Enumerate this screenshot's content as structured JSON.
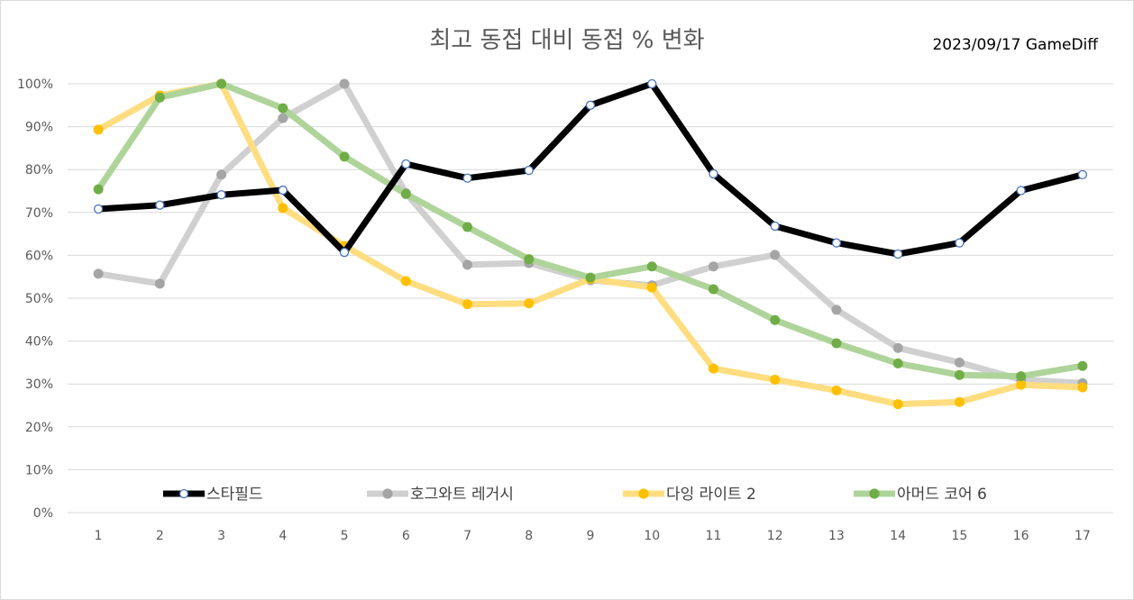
{
  "chart_data": {
    "type": "line",
    "title": "최고 동접 대비 동접 % 변화",
    "credit": "2023/09/17 GameDiff",
    "xlabel": "",
    "ylabel": "",
    "x": [
      1,
      2,
      3,
      4,
      5,
      6,
      7,
      8,
      9,
      10,
      11,
      12,
      13,
      14,
      15,
      16,
      17
    ],
    "ylim": [
      0,
      100
    ],
    "yticks": [
      "0%",
      "10%",
      "20%",
      "30%",
      "40%",
      "50%",
      "60%",
      "70%",
      "80%",
      "90%",
      "100%"
    ],
    "grid": true,
    "legend_position": "bottom-inside",
    "series": [
      {
        "name": "호그와트 레거시",
        "color": "#a5a5a5",
        "line_color": "#d0d0d0",
        "values": [
          55.7,
          53.4,
          78.8,
          92,
          100,
          74.5,
          57.8,
          58.2,
          54.2,
          53,
          57.4,
          60.1,
          47.3,
          38.4,
          35,
          31,
          30.2
        ]
      },
      {
        "name": "다잉 라이트 2",
        "color": "#ffc000",
        "line_color": "#ffdd80",
        "values": [
          89.3,
          97.3,
          100,
          71,
          62.2,
          54,
          48.6,
          48.8,
          54.5,
          52.5,
          33.6,
          31,
          28.5,
          25.3,
          25.8,
          29.8,
          29.2
        ]
      },
      {
        "name": "아머드 코어 6",
        "color": "#70ad47",
        "line_color": "#aed49a",
        "values": [
          75.4,
          96.8,
          100,
          94.3,
          83,
          74.3,
          66.6,
          59.1,
          54.8,
          57.4,
          52.1,
          44.9,
          39.5,
          34.8,
          32.1,
          31.8,
          34.2
        ]
      },
      {
        "name": "스타필드",
        "color": "#000000",
        "line_color": "#000000",
        "values": [
          70.8,
          71.7,
          74.1,
          75.2,
          60.7,
          81.3,
          78,
          79.8,
          95,
          100,
          79,
          66.8,
          62.9,
          60.3,
          62.9,
          75.1,
          78.8
        ]
      }
    ],
    "legend_order": [
      "스타필드",
      "호그와트 레거시",
      "다잉 라이트 2",
      "아머드 코어 6"
    ]
  }
}
